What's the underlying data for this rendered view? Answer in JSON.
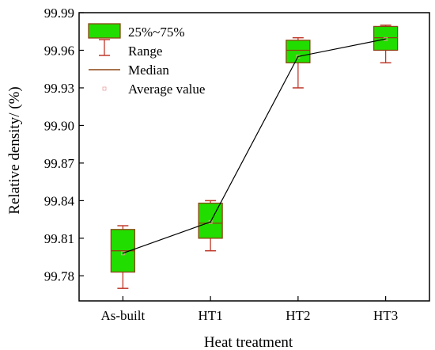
{
  "chart_data": {
    "type": "box",
    "xlabel": "Heat treatment",
    "ylabel": "Relative density/ (%)",
    "ylim": [
      99.76,
      99.99
    ],
    "yticks": [
      "99.78",
      "99.81",
      "99.84",
      "99.87",
      "99.90",
      "99.93",
      "99.96",
      "99.99"
    ],
    "categories": [
      "As-built",
      "HT1",
      "HT2",
      "HT3"
    ],
    "boxes": [
      {
        "category": "As-built",
        "min": 99.77,
        "q1": 99.783,
        "median": 99.8,
        "q3": 99.817,
        "max": 99.82,
        "mean": 99.798
      },
      {
        "category": "HT1",
        "min": 99.8,
        "q1": 99.81,
        "median": 99.822,
        "q3": 99.838,
        "max": 99.84,
        "mean": 99.823
      },
      {
        "category": "HT2",
        "min": 99.93,
        "q1": 99.95,
        "median": 99.96,
        "q3": 99.968,
        "max": 99.97,
        "mean": 99.955
      },
      {
        "category": "HT3",
        "min": 99.95,
        "q1": 99.96,
        "median": 99.97,
        "q3": 99.979,
        "max": 99.98,
        "mean": 99.969
      }
    ],
    "mean_line": true,
    "legend": {
      "placement": "top-left",
      "entries": [
        {
          "key": "box",
          "label": "25%~75%"
        },
        {
          "key": "range",
          "label": "Range"
        },
        {
          "key": "median",
          "label": "Median"
        },
        {
          "key": "mean",
          "label": "Average value"
        }
      ]
    },
    "colors": {
      "box_fill": "#22dd00",
      "box_edge": "#8b4513",
      "whisker": "#c0392b",
      "median": "#8b4513",
      "mean_marker": "#e8a0a0",
      "mean_line": "#000000"
    }
  }
}
